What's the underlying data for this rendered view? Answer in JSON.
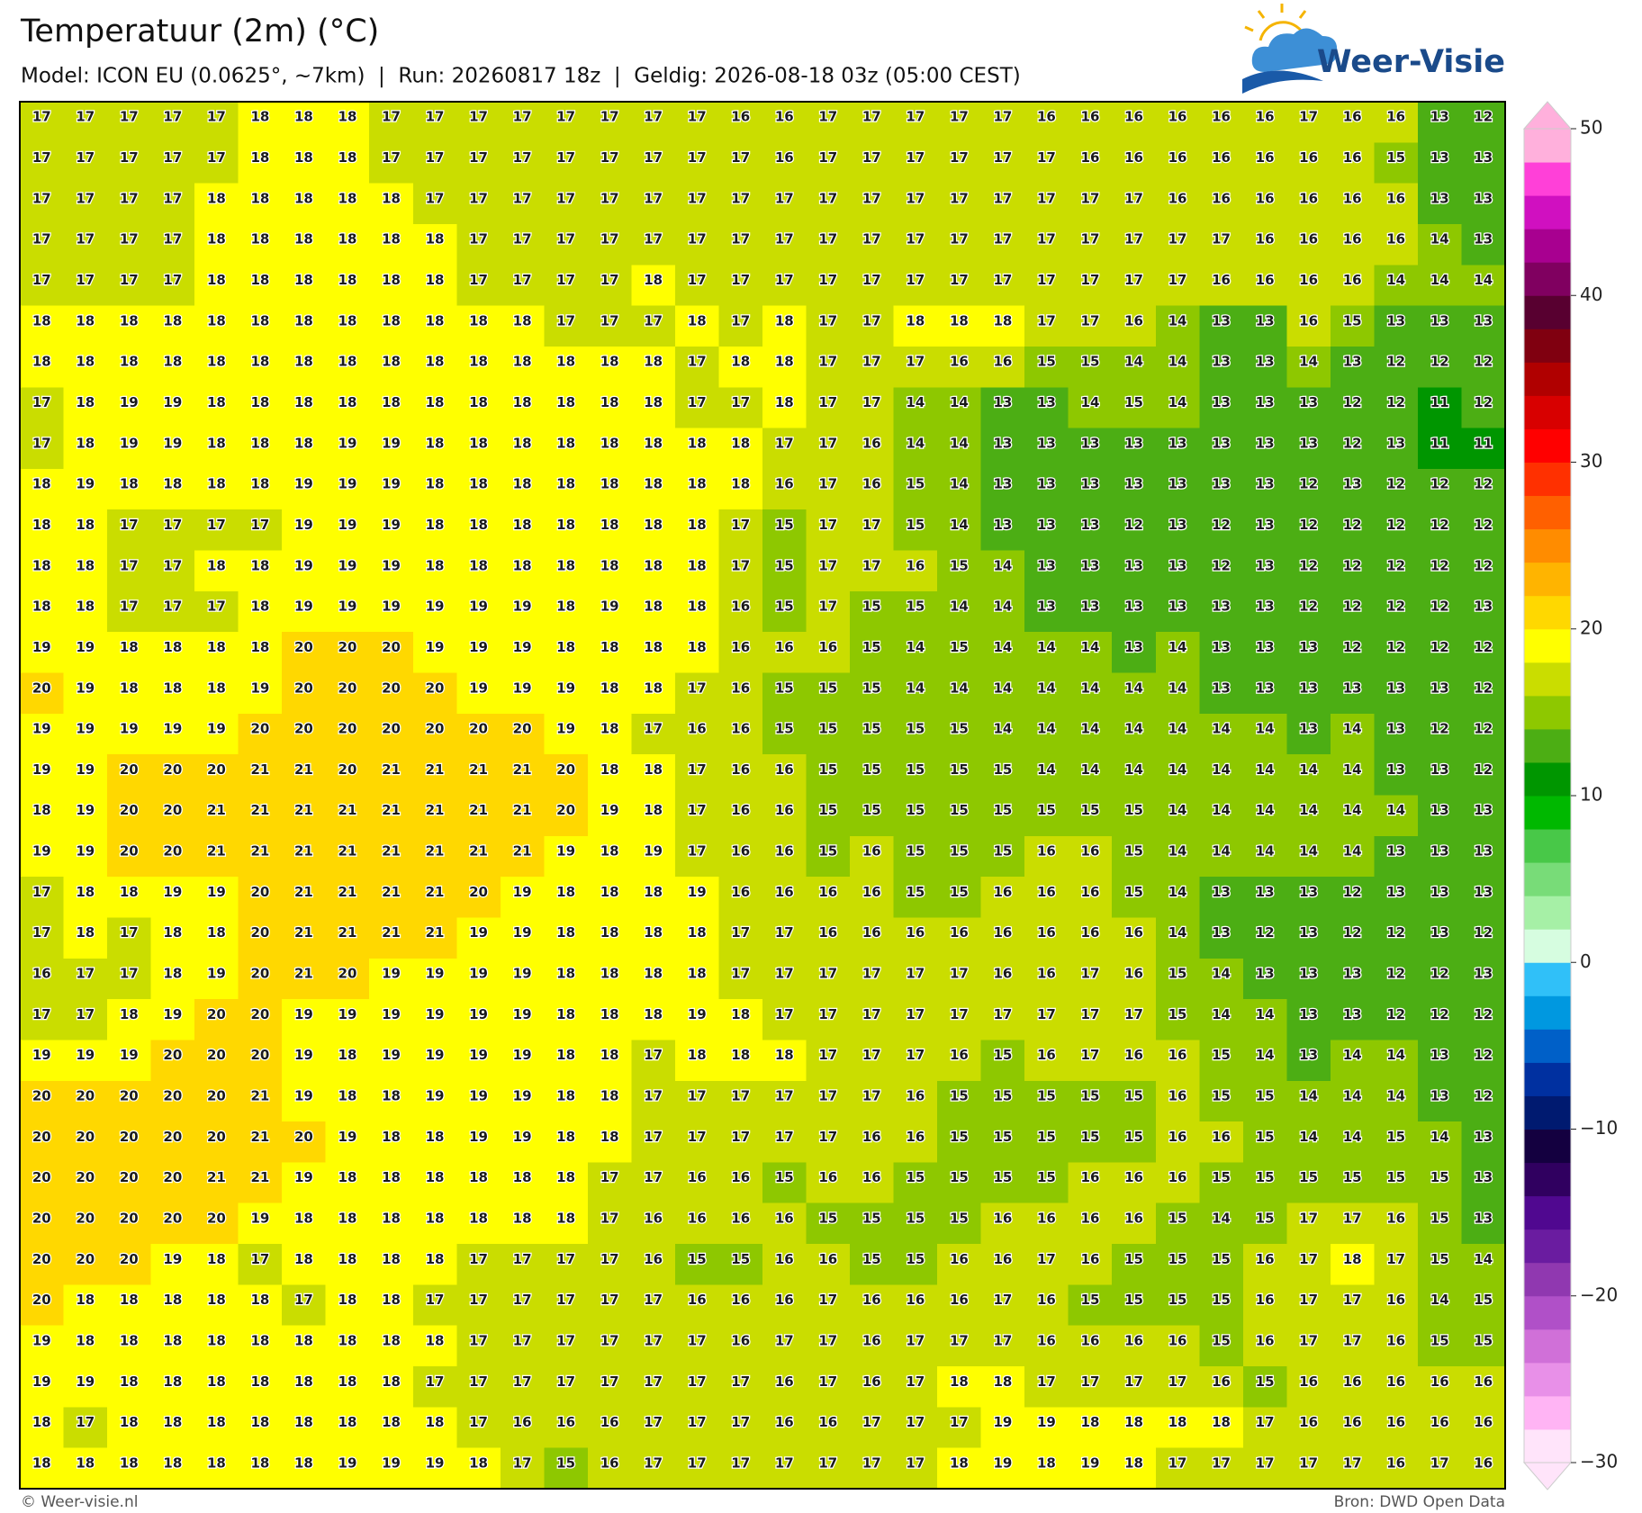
{
  "header": {
    "title": "Temperatuur (2m) (°C)",
    "subtitle": "Model: ICON EU (0.0625°, ~7km)  |  Run: 20260817 18z  |  Geldig: 2026-08-18 03z (05:00 CEST)"
  },
  "logo": {
    "text": "Weer-Visie"
  },
  "map": {
    "rows": [
      [
        17,
        17,
        17,
        17,
        17,
        18,
        18,
        18,
        17,
        17,
        17,
        17,
        17,
        17,
        17,
        17,
        16,
        16,
        17,
        17,
        17,
        17,
        17,
        16,
        16,
        16,
        16,
        16,
        16,
        17,
        16,
        16,
        13,
        12
      ],
      [
        17,
        17,
        17,
        17,
        17,
        18,
        18,
        18,
        17,
        17,
        17,
        17,
        17,
        17,
        17,
        17,
        17,
        16,
        17,
        17,
        17,
        17,
        17,
        17,
        16,
        16,
        16,
        16,
        16,
        16,
        16,
        15,
        13,
        13
      ],
      [
        17,
        17,
        17,
        17,
        18,
        18,
        18,
        18,
        18,
        17,
        17,
        17,
        17,
        17,
        17,
        17,
        17,
        17,
        17,
        17,
        17,
        17,
        17,
        17,
        17,
        17,
        16,
        16,
        16,
        16,
        16,
        16,
        13,
        13
      ],
      [
        17,
        17,
        17,
        17,
        18,
        18,
        18,
        18,
        18,
        18,
        17,
        17,
        17,
        17,
        17,
        17,
        17,
        17,
        17,
        17,
        17,
        17,
        17,
        17,
        17,
        17,
        17,
        17,
        16,
        16,
        16,
        16,
        14,
        13
      ],
      [
        17,
        17,
        17,
        17,
        18,
        18,
        18,
        18,
        18,
        18,
        17,
        17,
        17,
        17,
        18,
        17,
        17,
        17,
        17,
        17,
        17,
        17,
        17,
        17,
        17,
        17,
        17,
        16,
        16,
        16,
        16,
        14,
        14,
        14
      ],
      [
        18,
        18,
        18,
        18,
        18,
        18,
        18,
        18,
        18,
        18,
        18,
        18,
        17,
        17,
        17,
        18,
        17,
        18,
        17,
        17,
        18,
        18,
        18,
        17,
        17,
        16,
        14,
        13,
        13,
        16,
        15,
        13,
        13,
        13
      ],
      [
        18,
        18,
        18,
        18,
        18,
        18,
        18,
        18,
        18,
        18,
        18,
        18,
        18,
        18,
        18,
        17,
        18,
        18,
        17,
        17,
        17,
        16,
        16,
        15,
        15,
        14,
        14,
        13,
        13,
        14,
        13,
        12,
        12,
        12
      ],
      [
        17,
        18,
        19,
        19,
        18,
        18,
        18,
        18,
        18,
        18,
        18,
        18,
        18,
        18,
        18,
        17,
        17,
        18,
        17,
        17,
        14,
        14,
        13,
        13,
        14,
        15,
        14,
        13,
        13,
        13,
        12,
        12,
        11,
        12
      ],
      [
        17,
        18,
        19,
        19,
        18,
        18,
        18,
        19,
        19,
        18,
        18,
        18,
        18,
        18,
        18,
        18,
        18,
        17,
        17,
        16,
        14,
        14,
        13,
        13,
        13,
        13,
        13,
        13,
        13,
        13,
        12,
        13,
        11,
        11
      ],
      [
        18,
        19,
        18,
        18,
        18,
        18,
        19,
        19,
        19,
        18,
        18,
        18,
        18,
        18,
        18,
        18,
        18,
        16,
        17,
        16,
        15,
        14,
        13,
        13,
        13,
        13,
        13,
        13,
        13,
        12,
        13,
        12,
        12,
        12
      ],
      [
        18,
        18,
        17,
        17,
        17,
        17,
        19,
        19,
        19,
        18,
        18,
        18,
        18,
        18,
        18,
        18,
        17,
        15,
        17,
        17,
        15,
        14,
        13,
        13,
        13,
        12,
        13,
        12,
        13,
        12,
        12,
        12,
        12,
        12
      ],
      [
        18,
        18,
        17,
        17,
        18,
        18,
        19,
        19,
        19,
        18,
        18,
        18,
        18,
        18,
        18,
        18,
        17,
        15,
        17,
        17,
        16,
        15,
        14,
        13,
        13,
        13,
        13,
        12,
        13,
        12,
        12,
        12,
        12,
        12
      ],
      [
        18,
        18,
        17,
        17,
        17,
        18,
        19,
        19,
        19,
        19,
        19,
        19,
        18,
        19,
        18,
        18,
        16,
        15,
        17,
        15,
        15,
        14,
        14,
        13,
        13,
        13,
        13,
        13,
        13,
        12,
        12,
        12,
        12,
        13
      ],
      [
        19,
        19,
        18,
        18,
        18,
        18,
        20,
        20,
        20,
        19,
        19,
        19,
        18,
        18,
        18,
        18,
        16,
        16,
        16,
        15,
        14,
        15,
        14,
        14,
        14,
        13,
        14,
        13,
        13,
        13,
        12,
        12,
        12,
        12
      ],
      [
        20,
        19,
        18,
        18,
        18,
        19,
        20,
        20,
        20,
        20,
        19,
        19,
        19,
        18,
        18,
        17,
        16,
        15,
        15,
        15,
        14,
        14,
        14,
        14,
        14,
        14,
        14,
        13,
        13,
        13,
        13,
        13,
        13,
        12
      ],
      [
        19,
        19,
        19,
        19,
        19,
        20,
        20,
        20,
        20,
        20,
        20,
        20,
        19,
        18,
        17,
        16,
        16,
        15,
        15,
        15,
        15,
        15,
        14,
        14,
        14,
        14,
        14,
        14,
        14,
        13,
        14,
        13,
        12,
        12
      ],
      [
        19,
        19,
        20,
        20,
        20,
        21,
        21,
        20,
        21,
        21,
        21,
        21,
        20,
        18,
        18,
        17,
        16,
        16,
        15,
        15,
        15,
        15,
        15,
        14,
        14,
        14,
        14,
        14,
        14,
        14,
        14,
        13,
        13,
        12
      ],
      [
        18,
        19,
        20,
        20,
        21,
        21,
        21,
        21,
        21,
        21,
        21,
        21,
        20,
        19,
        18,
        17,
        16,
        16,
        15,
        15,
        15,
        15,
        15,
        15,
        15,
        15,
        14,
        14,
        14,
        14,
        14,
        14,
        13,
        13
      ],
      [
        19,
        19,
        20,
        20,
        21,
        21,
        21,
        21,
        21,
        21,
        21,
        21,
        19,
        18,
        19,
        17,
        16,
        16,
        15,
        16,
        15,
        15,
        15,
        16,
        16,
        15,
        14,
        14,
        14,
        14,
        14,
        13,
        13,
        13
      ],
      [
        17,
        18,
        18,
        19,
        19,
        20,
        21,
        21,
        21,
        21,
        20,
        19,
        18,
        18,
        18,
        19,
        16,
        16,
        16,
        16,
        15,
        15,
        16,
        16,
        16,
        15,
        14,
        13,
        13,
        13,
        12,
        13,
        13,
        13
      ],
      [
        17,
        18,
        17,
        18,
        18,
        20,
        21,
        21,
        21,
        21,
        19,
        19,
        18,
        18,
        18,
        18,
        17,
        17,
        16,
        16,
        16,
        16,
        16,
        16,
        16,
        16,
        14,
        13,
        12,
        13,
        12,
        12,
        13,
        12
      ],
      [
        16,
        17,
        17,
        18,
        19,
        20,
        21,
        20,
        19,
        19,
        19,
        19,
        18,
        18,
        18,
        18,
        17,
        17,
        17,
        17,
        17,
        17,
        16,
        16,
        17,
        16,
        15,
        14,
        13,
        13,
        13,
        12,
        12,
        13
      ],
      [
        17,
        17,
        18,
        19,
        20,
        20,
        19,
        19,
        19,
        19,
        19,
        19,
        18,
        18,
        18,
        19,
        18,
        17,
        17,
        17,
        17,
        17,
        17,
        17,
        17,
        17,
        15,
        14,
        14,
        13,
        13,
        12,
        12,
        12
      ],
      [
        19,
        19,
        19,
        20,
        20,
        20,
        19,
        18,
        19,
        19,
        19,
        19,
        18,
        18,
        17,
        18,
        18,
        18,
        17,
        17,
        17,
        16,
        15,
        16,
        17,
        16,
        16,
        15,
        14,
        13,
        14,
        14,
        13,
        12
      ],
      [
        20,
        20,
        20,
        20,
        20,
        21,
        19,
        18,
        18,
        19,
        19,
        19,
        18,
        18,
        17,
        17,
        17,
        17,
        17,
        17,
        16,
        15,
        15,
        15,
        15,
        15,
        16,
        15,
        15,
        14,
        14,
        14,
        13,
        12
      ],
      [
        20,
        20,
        20,
        20,
        20,
        21,
        20,
        19,
        18,
        18,
        19,
        19,
        18,
        18,
        17,
        17,
        17,
        17,
        17,
        16,
        16,
        15,
        15,
        15,
        15,
        15,
        16,
        16,
        15,
        14,
        14,
        15,
        14,
        13
      ],
      [
        20,
        20,
        20,
        20,
        21,
        21,
        19,
        18,
        18,
        18,
        18,
        18,
        18,
        17,
        17,
        16,
        16,
        15,
        16,
        16,
        15,
        15,
        15,
        15,
        16,
        16,
        16,
        15,
        15,
        15,
        15,
        15,
        15,
        13
      ],
      [
        20,
        20,
        20,
        20,
        20,
        19,
        18,
        18,
        18,
        18,
        18,
        18,
        18,
        17,
        16,
        16,
        16,
        16,
        15,
        15,
        15,
        15,
        16,
        16,
        16,
        16,
        15,
        14,
        15,
        17,
        17,
        16,
        15,
        13
      ],
      [
        20,
        20,
        20,
        19,
        18,
        17,
        18,
        18,
        18,
        18,
        17,
        17,
        17,
        17,
        16,
        15,
        15,
        16,
        16,
        15,
        15,
        16,
        16,
        17,
        16,
        15,
        15,
        15,
        16,
        17,
        18,
        17,
        15,
        14
      ],
      [
        20,
        18,
        18,
        18,
        18,
        18,
        17,
        18,
        18,
        17,
        17,
        17,
        17,
        17,
        17,
        16,
        16,
        16,
        17,
        16,
        16,
        16,
        17,
        16,
        15,
        15,
        15,
        15,
        16,
        17,
        17,
        16,
        14,
        15
      ],
      [
        19,
        18,
        18,
        18,
        18,
        18,
        18,
        18,
        18,
        18,
        17,
        17,
        17,
        17,
        17,
        17,
        16,
        17,
        17,
        16,
        17,
        17,
        17,
        16,
        16,
        16,
        16,
        15,
        16,
        17,
        17,
        16,
        15,
        15
      ],
      [
        19,
        19,
        18,
        18,
        18,
        18,
        18,
        18,
        18,
        17,
        17,
        17,
        17,
        17,
        17,
        17,
        17,
        16,
        17,
        16,
        17,
        18,
        18,
        17,
        17,
        17,
        17,
        16,
        15,
        16,
        16,
        16,
        16,
        16
      ],
      [
        18,
        17,
        18,
        18,
        18,
        18,
        18,
        18,
        18,
        18,
        17,
        16,
        16,
        16,
        17,
        17,
        17,
        16,
        16,
        17,
        17,
        17,
        19,
        19,
        18,
        18,
        18,
        18,
        17,
        16,
        16,
        16,
        16,
        16
      ],
      [
        18,
        18,
        18,
        18,
        18,
        18,
        18,
        19,
        19,
        19,
        18,
        17,
        15,
        16,
        17,
        17,
        17,
        17,
        17,
        17,
        17,
        18,
        19,
        18,
        19,
        18,
        17,
        17,
        17,
        17,
        17,
        16,
        17,
        16
      ]
    ]
  },
  "colorbar": {
    "range": [
      -30,
      50
    ],
    "ticks": [
      50,
      40,
      30,
      20,
      10,
      0,
      {
        "value": -10,
        "label": "−10"
      },
      {
        "value": -20,
        "label": "−20"
      },
      {
        "value": -30,
        "label": "−30"
      }
    ],
    "colors": [
      "#ffe4fa",
      "#ffb4f4",
      "#e890e8",
      "#d070d8",
      "#b050c8",
      "#9038b0",
      "#6a1ca0",
      "#500890",
      "#300060",
      "#140040",
      "#001a70",
      "#0030a0",
      "#0060c8",
      "#0098e0",
      "#30c0f8",
      "#d6fde0",
      "#a6f0a6",
      "#78dc78",
      "#48c848",
      "#00b800",
      "#009600",
      "#4cae14",
      "#8ec800",
      "#cadd00",
      "#ffff00",
      "#ffd800",
      "#ffb400",
      "#ff8c00",
      "#ff6000",
      "#ff3000",
      "#ff0000",
      "#d80000",
      "#b00000",
      "#800010",
      "#580030",
      "#800060",
      "#a80090",
      "#d010c0",
      "#ff40d8",
      "#ffb0dc"
    ]
  },
  "footer": {
    "left": "© Weer-visie.nl",
    "right": "Bron: DWD Open Data"
  }
}
